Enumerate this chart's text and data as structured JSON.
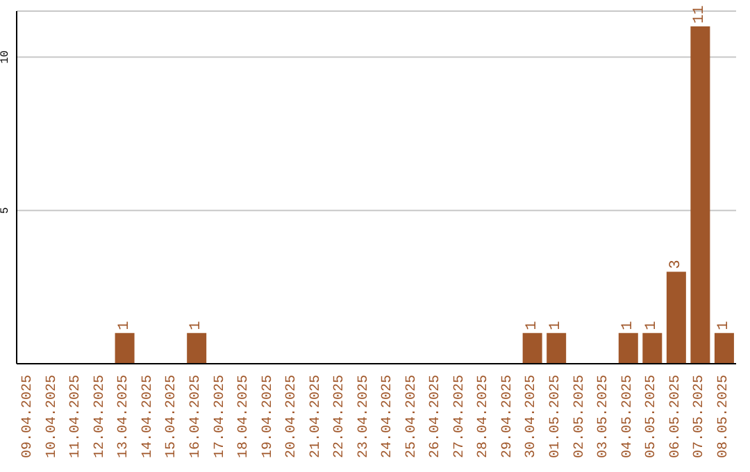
{
  "chart_data": {
    "type": "bar",
    "categories": [
      "09.04.2025",
      "10.04.2025",
      "11.04.2025",
      "12.04.2025",
      "13.04.2025",
      "14.04.2025",
      "15.04.2025",
      "16.04.2025",
      "17.04.2025",
      "18.04.2025",
      "19.04.2025",
      "20.04.2025",
      "21.04.2025",
      "22.04.2025",
      "23.04.2025",
      "24.04.2025",
      "25.04.2025",
      "26.04.2025",
      "27.04.2025",
      "28.04.2025",
      "29.04.2025",
      "30.04.2025",
      "01.05.2025",
      "02.05.2025",
      "03.05.2025",
      "04.05.2025",
      "05.05.2025",
      "06.05.2025",
      "07.05.2025",
      "08.05.2025"
    ],
    "values": [
      0,
      0,
      0,
      0,
      1,
      0,
      0,
      1,
      0,
      0,
      0,
      0,
      0,
      0,
      0,
      0,
      0,
      0,
      0,
      0,
      0,
      1,
      1,
      0,
      0,
      1,
      1,
      3,
      11,
      1
    ],
    "value_labels": [
      null,
      null,
      null,
      null,
      "1",
      null,
      null,
      "1",
      null,
      null,
      null,
      null,
      null,
      null,
      null,
      null,
      null,
      null,
      null,
      null,
      null,
      "1",
      "1",
      null,
      null,
      "1",
      "1",
      "3",
      "11",
      "1"
    ],
    "color": "#a0572a",
    "ylim": [
      0,
      11.5
    ],
    "yticks": [
      5,
      10
    ],
    "grid": "y",
    "legend": false
  }
}
